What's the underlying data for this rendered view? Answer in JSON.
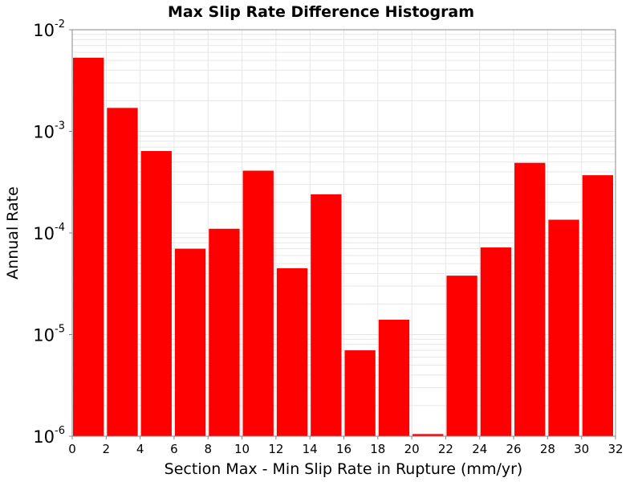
{
  "chart_data": {
    "type": "bar",
    "title": "Max Slip Rate Difference Histogram",
    "xlabel": "Section Max - Min Slip Rate in Rupture (mm/yr)",
    "ylabel": "Annual Rate",
    "x_bin_width": 2,
    "x_bin_starts": [
      0,
      2,
      4,
      6,
      8,
      10,
      12,
      14,
      16,
      18,
      20,
      22,
      24,
      26,
      28,
      30
    ],
    "values": [
      0.0053,
      0.0017,
      0.00064,
      7e-05,
      0.00011,
      0.00041,
      4.5e-05,
      0.00024,
      7e-06,
      1.4e-05,
      1.05e-06,
      3.8e-05,
      7.2e-05,
      0.00049,
      0.000135,
      0.00037
    ],
    "xlim": [
      0,
      32
    ],
    "ylim": [
      1e-06,
      0.01
    ],
    "y_scale": "log",
    "x_ticks": [
      "0",
      "2",
      "4",
      "6",
      "8",
      "10",
      "12",
      "14",
      "16",
      "18",
      "20",
      "22",
      "24",
      "26",
      "28",
      "30",
      "32"
    ],
    "y_ticks": [
      {
        "base": "10",
        "exp": "-2",
        "value": 0.01
      },
      {
        "base": "10",
        "exp": "-3",
        "value": 0.001
      },
      {
        "base": "10",
        "exp": "-4",
        "value": 0.0001
      },
      {
        "base": "10",
        "exp": "-5",
        "value": 1e-05
      },
      {
        "base": "10",
        "exp": "-6",
        "value": 1e-06
      }
    ],
    "bar_color": "#ff0000",
    "grid": true,
    "grid_color": "#e6e6e6",
    "legend": "none"
  }
}
